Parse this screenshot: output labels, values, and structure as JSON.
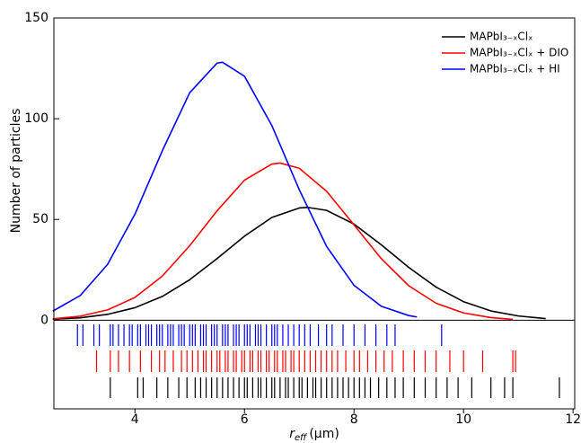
{
  "chart_data": {
    "type": "line",
    "y_label": "Number of particles",
    "x_label": {
      "symbol": "r",
      "subscript": "eff",
      "unit": "(μm)"
    },
    "xlim": [
      2.52,
      12.03
    ],
    "ylim": [
      -44,
      150
    ],
    "xticks": [
      4,
      6,
      8,
      10,
      12
    ],
    "yticks": [
      0,
      50,
      100,
      150
    ],
    "legend": "upper right",
    "series": [
      {
        "name": "MAPbI₃₋ₓClₓ",
        "color": "#000000",
        "x": [
          2.5,
          3.0,
          3.5,
          4.0,
          4.5,
          5.0,
          5.5,
          6.0,
          6.5,
          7.0,
          7.15,
          7.5,
          8.0,
          8.5,
          9.0,
          9.5,
          10.0,
          10.5,
          11.0,
          11.5
        ],
        "values": [
          0.5,
          1.2,
          2.9,
          6.2,
          11.8,
          20.1,
          30.6,
          41.7,
          51.0,
          55.7,
          56,
          54.5,
          47.7,
          37.4,
          26.2,
          16.4,
          9.2,
          4.6,
          2.1,
          0.8
        ],
        "rug": [
          3.55,
          4.05,
          4.15,
          4.4,
          4.6,
          4.8,
          4.95,
          5.1,
          5.2,
          5.3,
          5.4,
          5.5,
          5.6,
          5.7,
          5.8,
          5.9,
          6.0,
          6.05,
          6.15,
          6.25,
          6.3,
          6.4,
          6.5,
          6.55,
          6.65,
          6.75,
          6.8,
          6.9,
          7.0,
          7.05,
          7.15,
          7.25,
          7.3,
          7.4,
          7.5,
          7.6,
          7.7,
          7.8,
          7.9,
          8.0,
          8.1,
          8.2,
          8.3,
          8.45,
          8.6,
          8.75,
          8.9,
          9.1,
          9.3,
          9.5,
          9.7,
          9.9,
          10.15,
          10.5,
          10.75,
          10.9,
          11.75
        ]
      },
      {
        "name": "MAPbI₃₋ₓClₓ + DIO",
        "color": "#ff0000",
        "x": [
          2.5,
          3.0,
          3.5,
          4.0,
          4.5,
          5.0,
          5.5,
          6.0,
          6.5,
          6.65,
          7.0,
          7.5,
          8.0,
          8.5,
          9.0,
          9.5,
          10.0,
          10.5,
          10.9
        ],
        "values": [
          0.7,
          2.0,
          5.1,
          11.3,
          21.9,
          37.0,
          54.3,
          69.5,
          77.5,
          78,
          75.4,
          64.0,
          47.3,
          30.5,
          17.1,
          8.4,
          3.6,
          1.3,
          0.4
        ],
        "rug": [
          3.3,
          3.55,
          3.7,
          3.9,
          4.1,
          4.3,
          4.45,
          4.55,
          4.7,
          4.85,
          4.95,
          5.05,
          5.15,
          5.25,
          5.3,
          5.4,
          5.5,
          5.55,
          5.65,
          5.7,
          5.8,
          5.85,
          5.95,
          6.0,
          6.1,
          6.15,
          6.25,
          6.3,
          6.4,
          6.45,
          6.55,
          6.6,
          6.7,
          6.75,
          6.85,
          6.9,
          7.0,
          7.1,
          7.2,
          7.3,
          7.4,
          7.5,
          7.6,
          7.7,
          7.85,
          8.0,
          8.1,
          8.25,
          8.4,
          8.55,
          8.7,
          8.9,
          9.1,
          9.3,
          9.5,
          9.75,
          10.0,
          10.35,
          10.9,
          10.95
        ]
      },
      {
        "name": "MAPbI₃₋ₓClₓ + HI",
        "color": "#0000ff",
        "x": [
          2.5,
          3.0,
          3.5,
          4.0,
          4.5,
          5.0,
          5.5,
          5.6,
          6.0,
          6.5,
          7.0,
          7.5,
          8.0,
          8.5,
          9.0,
          9.15
        ],
        "values": [
          4.5,
          12.2,
          27.7,
          52.6,
          84.1,
          112.9,
          127.6,
          128,
          121.1,
          96.6,
          64.8,
          36.6,
          17.3,
          6.9,
          2.3,
          1.6
        ],
        "rug": [
          2.95,
          3.05,
          3.25,
          3.35,
          3.55,
          3.6,
          3.7,
          3.8,
          3.9,
          3.95,
          4.05,
          4.1,
          4.2,
          4.25,
          4.3,
          4.4,
          4.45,
          4.5,
          4.6,
          4.65,
          4.7,
          4.8,
          4.85,
          4.9,
          5.0,
          5.05,
          5.1,
          5.2,
          5.25,
          5.3,
          5.4,
          5.45,
          5.5,
          5.6,
          5.65,
          5.7,
          5.8,
          5.85,
          5.9,
          6.0,
          6.05,
          6.1,
          6.2,
          6.25,
          6.3,
          6.4,
          6.5,
          6.55,
          6.6,
          6.7,
          6.8,
          6.9,
          7.0,
          7.1,
          7.2,
          7.35,
          7.5,
          7.6,
          7.8,
          8.0,
          8.2,
          8.4,
          8.6,
          8.75,
          9.6
        ]
      }
    ]
  }
}
